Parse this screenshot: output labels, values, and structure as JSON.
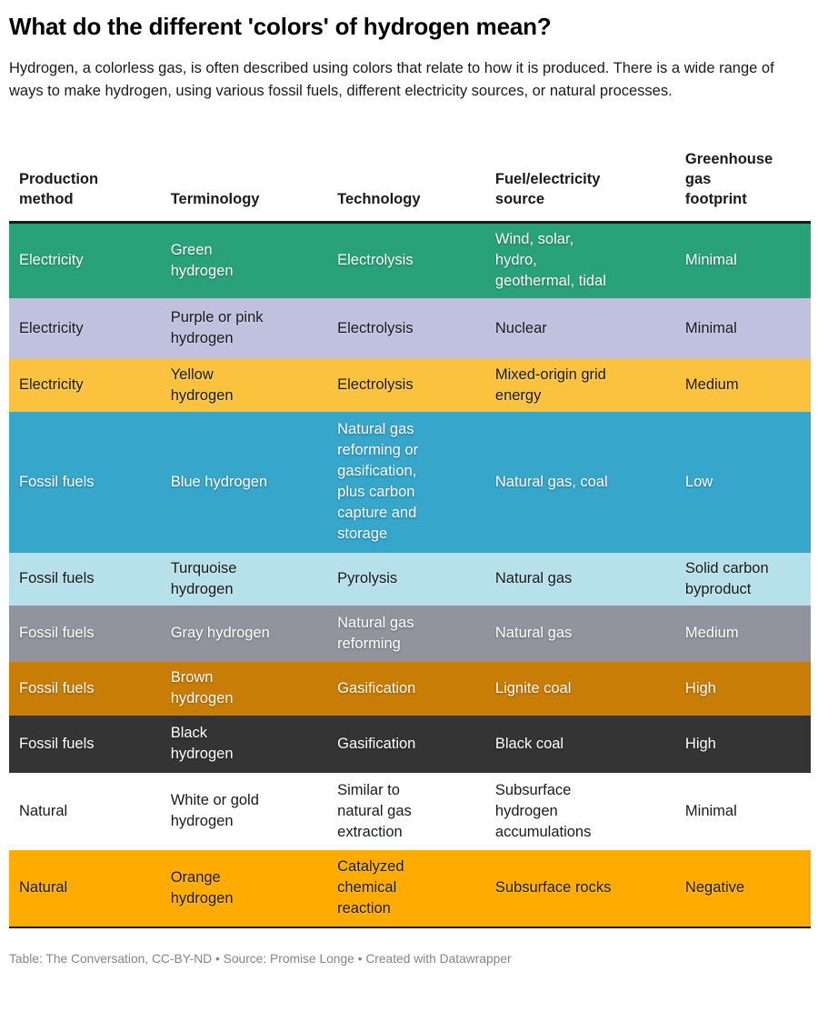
{
  "page": {
    "title": "What do the different 'colors' of hydrogen mean?",
    "intro": "Hydrogen, a colorless gas, is often described using colors that relate to how it is produced. There is a wide range of ways to make hydrogen, using various fossil fuels, different electricity sources, or natural processes.",
    "footer": "Table: The Conversation, CC-BY-ND • Source: Promise Longe • Created with Datawrapper"
  },
  "colors": {
    "header_rule": "#1a1a1a",
    "table_bottom_rule": "#1a1a1a",
    "footer_text": "#858585"
  },
  "chart_data": {
    "type": "table",
    "columns": [
      "Production\nmethod",
      "Terminology",
      "Technology",
      "Fuel/electricity\nsource",
      "Greenhouse\ngas\nfootprint"
    ],
    "rows": [
      {
        "production_method": "Electricity",
        "terminology": "Green\nhydrogen",
        "technology": "Electrolysis",
        "fuel_source": "Wind, solar,\nhydro,\ngeothermal, tidal",
        "footprint": "Minimal",
        "bg_color": "#2aa279",
        "text_color": "#ffffff"
      },
      {
        "production_method": "Electricity",
        "terminology": "Purple or pink\nhydrogen",
        "technology": "Electrolysis",
        "fuel_source": "Nuclear",
        "footprint": "Minimal",
        "bg_color": "#bfc1df",
        "text_color": "#1a1a1a"
      },
      {
        "production_method": "Electricity",
        "terminology": "Yellow\nhydrogen",
        "technology": "Electrolysis",
        "fuel_source": "Mixed-origin grid\nenergy",
        "footprint": "Medium",
        "bg_color": "#fbc23d",
        "text_color": "#1a1a1a"
      },
      {
        "production_method": "Fossil fuels",
        "terminology": "Blue hydrogen",
        "technology": "Natural gas\nreforming or\ngasification,\nplus carbon\ncapture and\nstorage",
        "fuel_source": "Natural gas, coal",
        "footprint": "Low",
        "bg_color": "#36a6cb",
        "text_color": "#ffffff"
      },
      {
        "production_method": "Fossil fuels",
        "terminology": "Turquoise\nhydrogen",
        "technology": "Pyrolysis",
        "fuel_source": "Natural gas",
        "footprint": "Solid carbon\nbyproduct",
        "bg_color": "#b7e1ea",
        "text_color": "#1a1a1a"
      },
      {
        "production_method": "Fossil fuels",
        "terminology": "Gray hydrogen",
        "technology": "Natural gas\nreforming",
        "fuel_source": "Natural gas",
        "footprint": "Medium",
        "bg_color": "#93939d",
        "text_color": "#ffffff"
      },
      {
        "production_method": "Fossil fuels",
        "terminology": "Brown\nhydrogen",
        "technology": "Gasification",
        "fuel_source": "Lignite coal",
        "footprint": "High",
        "bg_color": "#c87d06",
        "text_color": "#ffffff"
      },
      {
        "production_method": "Fossil fuels",
        "terminology": "Black\nhydrogen",
        "technology": "Gasification",
        "fuel_source": "Black coal",
        "footprint": "High",
        "bg_color": "#343434",
        "text_color": "#ffffff"
      },
      {
        "production_method": "Natural",
        "terminology": "White or gold\nhydrogen",
        "technology": "Similar to\nnatural gas\nextraction",
        "fuel_source": "Subsurface\nhydrogen\naccumulations",
        "footprint": "Minimal",
        "bg_color": "#ffffff",
        "text_color": "#1a1a1a"
      },
      {
        "production_method": "Natural",
        "terminology": "Orange\nhydrogen",
        "technology": "Catalyzed\nchemical\nreaction",
        "fuel_source": "Subsurface rocks",
        "footprint": "Negative",
        "bg_color": "#ffab00",
        "text_color": "#1a1a1a"
      }
    ]
  }
}
